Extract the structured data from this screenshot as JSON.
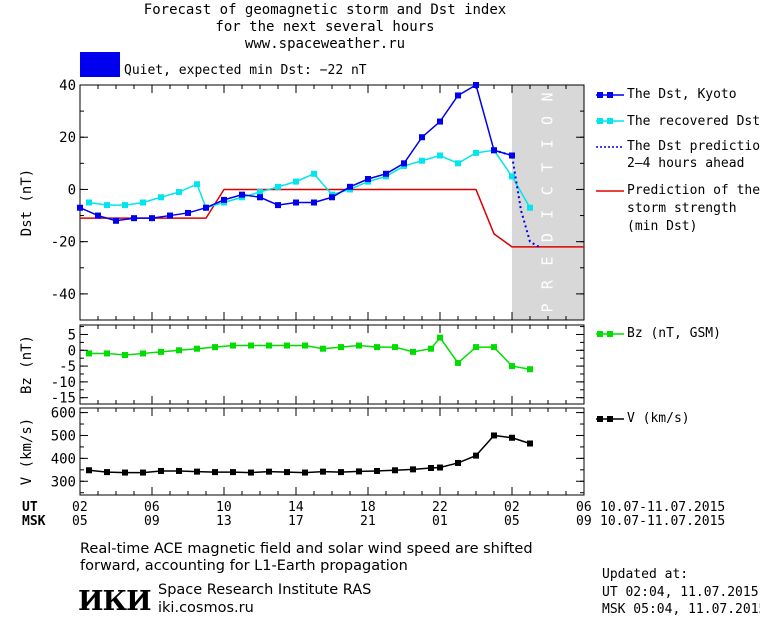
{
  "header": {
    "title_line1": "Forecast of geomagnetic storm and Dst index",
    "title_line2": "for the next several hours",
    "website": "www.spaceweather.ru",
    "status_text": "Quiet, expected min Dst: −22 nT",
    "status_color": "#0000ee"
  },
  "legend": {
    "dst_kyoto": "The Dst, Kyoto",
    "recovered": "The recovered Dst",
    "prediction_line1": "The Dst prediction",
    "prediction_line2": "2–4 hours ahead",
    "strength_line1": "Prediction of the",
    "strength_line2": "storm strength",
    "strength_line3": "(min Dst)",
    "bz": "Bz (nT, GSM)",
    "v": "V (km/s)"
  },
  "prediction_label": "PREDICTION",
  "time_axis": {
    "ut_label": "UT",
    "msk_label": "MSK",
    "ut_ticks": [
      "02",
      "06",
      "10",
      "14",
      "18",
      "22",
      "02",
      "06"
    ],
    "msk_ticks": [
      "05",
      "09",
      "13",
      "17",
      "21",
      "01",
      "05",
      "09"
    ],
    "date_range": "10.07-11.07.2015"
  },
  "footer": {
    "note_line1": "Real-time ACE magnetic field and solar wind speed are shifted",
    "note_line2": "forward, accounting for L1-Earth propagation",
    "logo_text": "ИКИ",
    "institute": "Space Research Institute RAS",
    "site": "iki.cosmos.ru",
    "updated_label": "Updated at:",
    "updated_ut": "UT  02:04, 11.07.2015",
    "updated_msk": "MSK 05:04, 11.07.2015"
  },
  "colors": {
    "dst": "#0000ee",
    "recovered": "#00e5ee",
    "prediction": "#0000ee",
    "strength": "#dd0000",
    "bz": "#00dd00",
    "v": "#000000",
    "prediction_band": "#d8d8d8"
  },
  "chart_data": [
    {
      "type": "line",
      "ylabel": "Dst (nT)",
      "xlim": [
        2,
        30
      ],
      "ylim": [
        -50,
        40
      ],
      "yticks": [
        -40,
        -20,
        0,
        20,
        40
      ],
      "grid": false,
      "legend_position": "right",
      "prediction_band": [
        26,
        30
      ],
      "series": [
        {
          "name": "The Dst, Kyoto",
          "style": "line-square",
          "x": [
            2,
            3,
            4,
            5,
            6,
            7,
            8,
            9,
            10,
            11,
            12,
            13,
            14,
            15,
            16,
            17,
            18,
            19,
            20,
            21,
            22,
            23,
            24,
            25,
            26
          ],
          "y": [
            -7,
            -10,
            -12,
            -11,
            -11,
            -10,
            -9,
            -7,
            -4,
            -2,
            -3,
            -6,
            -5,
            -5,
            -3,
            1,
            4,
            6,
            10,
            20,
            26,
            36,
            40,
            15,
            13
          ]
        },
        {
          "name": "The recovered Dst",
          "style": "line-square",
          "x": [
            2.5,
            3.5,
            4.5,
            5.5,
            6.5,
            7.5,
            8.5,
            9,
            10,
            11,
            12,
            13,
            14,
            15,
            16,
            17,
            18,
            19,
            20,
            21,
            22,
            23,
            24,
            25,
            26,
            27
          ],
          "y": [
            -5,
            -6,
            -6,
            -5,
            -3,
            -1,
            2,
            -7,
            -5,
            -3,
            -1,
            1,
            3,
            6,
            -2,
            0,
            3,
            5,
            9,
            11,
            13,
            10,
            14,
            15,
            5,
            -7
          ]
        },
        {
          "name": "The Dst prediction 2–4 hours ahead",
          "style": "dotted",
          "x": [
            25,
            26,
            26.5,
            27,
            27.5
          ],
          "y": [
            15,
            13,
            -8,
            -20,
            -22
          ]
        },
        {
          "name": "Prediction of the storm strength (min Dst)",
          "style": "step",
          "x": [
            2,
            9,
            10,
            24,
            25,
            26,
            30
          ],
          "y": [
            -11,
            -11,
            0,
            0,
            -17,
            -22,
            -22
          ]
        }
      ]
    },
    {
      "type": "line",
      "ylabel": "Bz (nT)",
      "xlim": [
        2,
        30
      ],
      "ylim": [
        -17,
        8
      ],
      "yticks": [
        -15,
        -10,
        -5,
        0,
        5
      ],
      "series": [
        {
          "name": "Bz (nT, GSM)",
          "style": "line-square",
          "x": [
            2.5,
            3.5,
            4.5,
            5.5,
            6.5,
            7.5,
            8.5,
            9.5,
            10.5,
            11.5,
            12.5,
            13.5,
            14.5,
            15.5,
            16.5,
            17.5,
            18.5,
            19.5,
            20.5,
            21.5,
            22,
            23,
            24,
            25,
            26,
            27
          ],
          "y": [
            -1,
            -1,
            -1.5,
            -1,
            -0.5,
            0,
            0.5,
            1,
            1.5,
            1.5,
            1.5,
            1.5,
            1.5,
            0.5,
            1,
            1.5,
            1,
            1,
            -0.5,
            0.5,
            4,
            -4,
            1,
            1,
            -5,
            -6
          ]
        }
      ]
    },
    {
      "type": "line",
      "ylabel": "V (km/s)",
      "xlim": [
        2,
        30
      ],
      "ylim": [
        240,
        620
      ],
      "yticks": [
        300,
        400,
        500,
        600
      ],
      "series": [
        {
          "name": "V (km/s)",
          "style": "line-square",
          "x": [
            2.5,
            3.5,
            4.5,
            5.5,
            6.5,
            7.5,
            8.5,
            9.5,
            10.5,
            11.5,
            12.5,
            13.5,
            14.5,
            15.5,
            16.5,
            17.5,
            18.5,
            19.5,
            20.5,
            21.5,
            22,
            23,
            24,
            25,
            26,
            27
          ],
          "y": [
            348,
            340,
            338,
            338,
            345,
            345,
            342,
            340,
            340,
            338,
            342,
            340,
            338,
            342,
            340,
            343,
            345,
            348,
            352,
            358,
            360,
            380,
            412,
            500,
            490,
            465
          ]
        }
      ]
    }
  ]
}
